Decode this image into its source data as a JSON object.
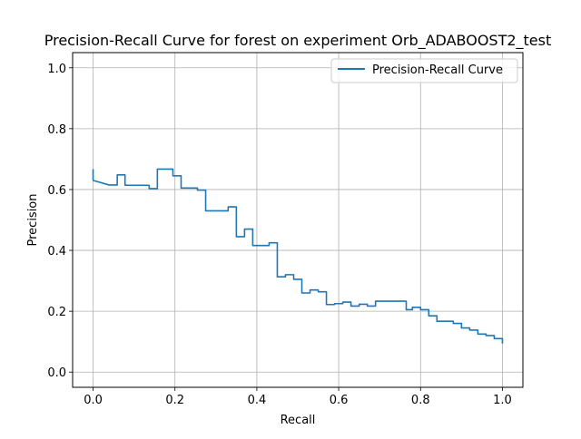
{
  "colors": {
    "series": "#1f77b4",
    "grid": "#b0b0b0",
    "axes": "#000000",
    "legend_border": "#cccccc",
    "background": "#ffffff"
  },
  "chart_data": {
    "type": "line",
    "title": "Precision-Recall Curve for forest on experiment Orb_ADABOOST2_test",
    "xlabel": "Recall",
    "ylabel": "Precision",
    "xlim": [
      -0.05,
      1.05
    ],
    "ylim": [
      -0.05,
      1.05
    ],
    "grid": true,
    "legend_position": "top-right",
    "x_ticks": [
      {
        "value": 0.0,
        "label": "0.0"
      },
      {
        "value": 0.2,
        "label": "0.2"
      },
      {
        "value": 0.4,
        "label": "0.4"
      },
      {
        "value": 0.6,
        "label": "0.6"
      },
      {
        "value": 0.8,
        "label": "0.8"
      },
      {
        "value": 1.0,
        "label": "1.0"
      }
    ],
    "y_ticks": [
      {
        "value": 0.0,
        "label": "0.0"
      },
      {
        "value": 0.2,
        "label": "0.2"
      },
      {
        "value": 0.4,
        "label": "0.4"
      },
      {
        "value": 0.6,
        "label": "0.6"
      },
      {
        "value": 0.8,
        "label": "0.8"
      },
      {
        "value": 1.0,
        "label": "1.0"
      }
    ],
    "series": [
      {
        "name": "Precision-Recall Curve",
        "x": [
          1.0,
          1.0,
          0.98,
          0.98,
          0.96,
          0.96,
          0.94,
          0.94,
          0.92,
          0.92,
          0.9,
          0.9,
          0.88,
          0.88,
          0.84,
          0.84,
          0.82,
          0.82,
          0.8,
          0.8,
          0.78,
          0.78,
          0.765,
          0.765,
          0.69,
          0.69,
          0.67,
          0.67,
          0.65,
          0.65,
          0.63,
          0.63,
          0.61,
          0.61,
          0.59,
          0.59,
          0.57,
          0.57,
          0.55,
          0.55,
          0.53,
          0.53,
          0.51,
          0.51,
          0.49,
          0.49,
          0.47,
          0.47,
          0.45,
          0.45,
          0.43,
          0.43,
          0.39,
          0.39,
          0.37,
          0.37,
          0.35,
          0.35,
          0.33,
          0.33,
          0.275,
          0.275,
          0.255,
          0.255,
          0.215,
          0.215,
          0.195,
          0.195,
          0.157,
          0.157,
          0.137,
          0.137,
          0.078,
          0.078,
          0.059,
          0.059,
          0.039,
          0.0,
          0.0,
          0.0
        ],
        "y": [
          0.094,
          0.11,
          0.11,
          0.12,
          0.12,
          0.125,
          0.125,
          0.138,
          0.138,
          0.145,
          0.145,
          0.16,
          0.16,
          0.167,
          0.167,
          0.185,
          0.185,
          0.205,
          0.205,
          0.213,
          0.213,
          0.205,
          0.205,
          0.233,
          0.233,
          0.217,
          0.217,
          0.223,
          0.223,
          0.217,
          0.217,
          0.23,
          0.23,
          0.225,
          0.225,
          0.222,
          0.222,
          0.264,
          0.264,
          0.27,
          0.27,
          0.26,
          0.26,
          0.305,
          0.305,
          0.32,
          0.32,
          0.313,
          0.313,
          0.425,
          0.425,
          0.416,
          0.416,
          0.47,
          0.47,
          0.445,
          0.445,
          0.543,
          0.543,
          0.53,
          0.53,
          0.598,
          0.598,
          0.605,
          0.605,
          0.645,
          0.645,
          0.667,
          0.667,
          0.603,
          0.603,
          0.614,
          0.614,
          0.648,
          0.648,
          0.615,
          0.615,
          0.63,
          0.63,
          0.667
        ]
      }
    ]
  }
}
